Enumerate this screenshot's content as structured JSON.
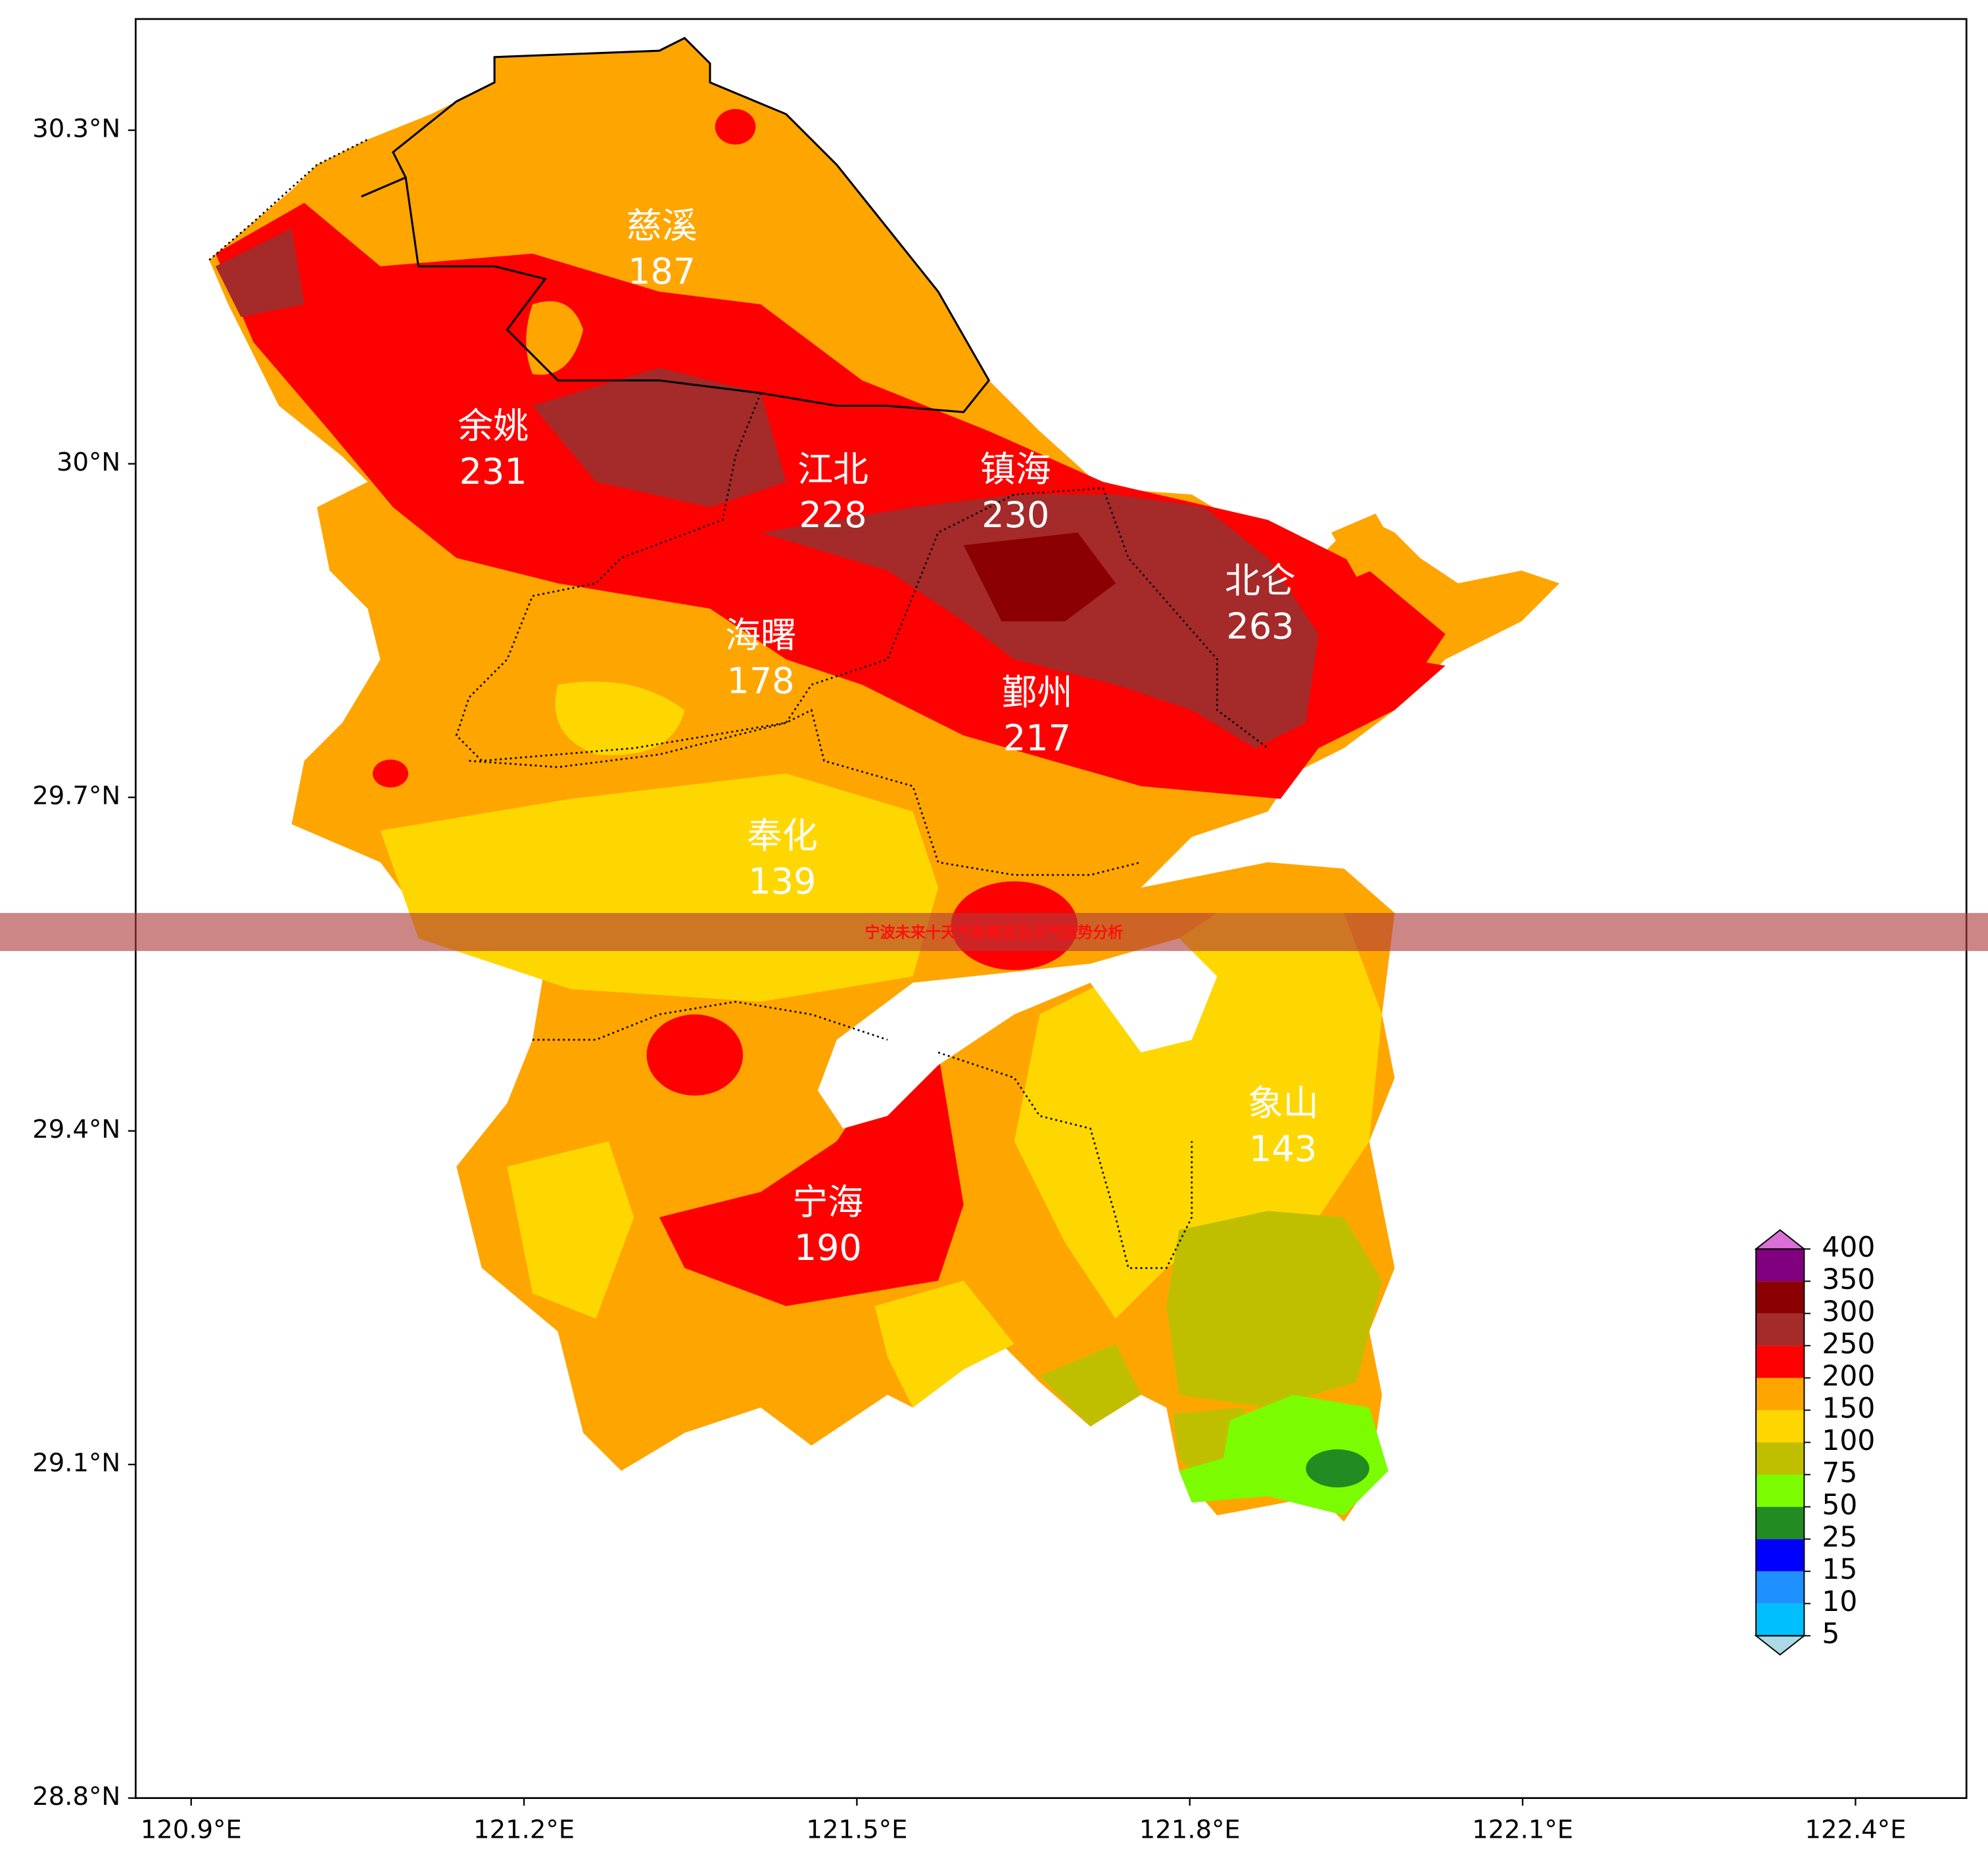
{
  "banner": "宁波未来十天气象概览及天气趋势分析",
  "map": {
    "type": "contour",
    "xlim": [
      120.85,
      122.5
    ],
    "ylim": [
      28.8,
      30.4
    ],
    "xticks": [
      {
        "value": 120.9,
        "label": "120.9°E"
      },
      {
        "value": 121.2,
        "label": "121.2°E"
      },
      {
        "value": 121.5,
        "label": "121.5°E"
      },
      {
        "value": 121.8,
        "label": "121.8°E"
      },
      {
        "value": 122.1,
        "label": "122.1°E"
      },
      {
        "value": 122.4,
        "label": "122.4°E"
      }
    ],
    "yticks": [
      {
        "value": 28.8,
        "label": "28.8°N"
      },
      {
        "value": 29.1,
        "label": "29.1°N"
      },
      {
        "value": 29.4,
        "label": "29.4°N"
      },
      {
        "value": 29.7,
        "label": "29.7°N"
      },
      {
        "value": 30.0,
        "label": "30°N"
      },
      {
        "value": 30.3,
        "label": "30.3°N"
      }
    ],
    "districts": [
      {
        "name": "慈溪",
        "value": 187
      },
      {
        "name": "余姚",
        "value": 231
      },
      {
        "name": "江北",
        "value": 228
      },
      {
        "name": "镇海",
        "value": 230
      },
      {
        "name": "北仑",
        "value": 263
      },
      {
        "name": "海曙",
        "value": 178
      },
      {
        "name": "鄞州",
        "value": 217
      },
      {
        "name": "奉化",
        "value": 139
      },
      {
        "name": "象山",
        "value": 143
      },
      {
        "name": "宁海",
        "value": 190
      }
    ]
  },
  "colorbar": {
    "levels": [
      5,
      10,
      15,
      25,
      50,
      75,
      100,
      150,
      200,
      250,
      300,
      350,
      400
    ],
    "colors": [
      "#00bfff",
      "#1e90ff",
      "#0000ff",
      "#228b22",
      "#7cfc00",
      "#bfbf00",
      "#ffd700",
      "#ffa500",
      "#ff0000",
      "#a52a2a",
      "#8b0000",
      "#800080"
    ],
    "under_color": "#add8e6",
    "over_color": "#da70d6"
  }
}
